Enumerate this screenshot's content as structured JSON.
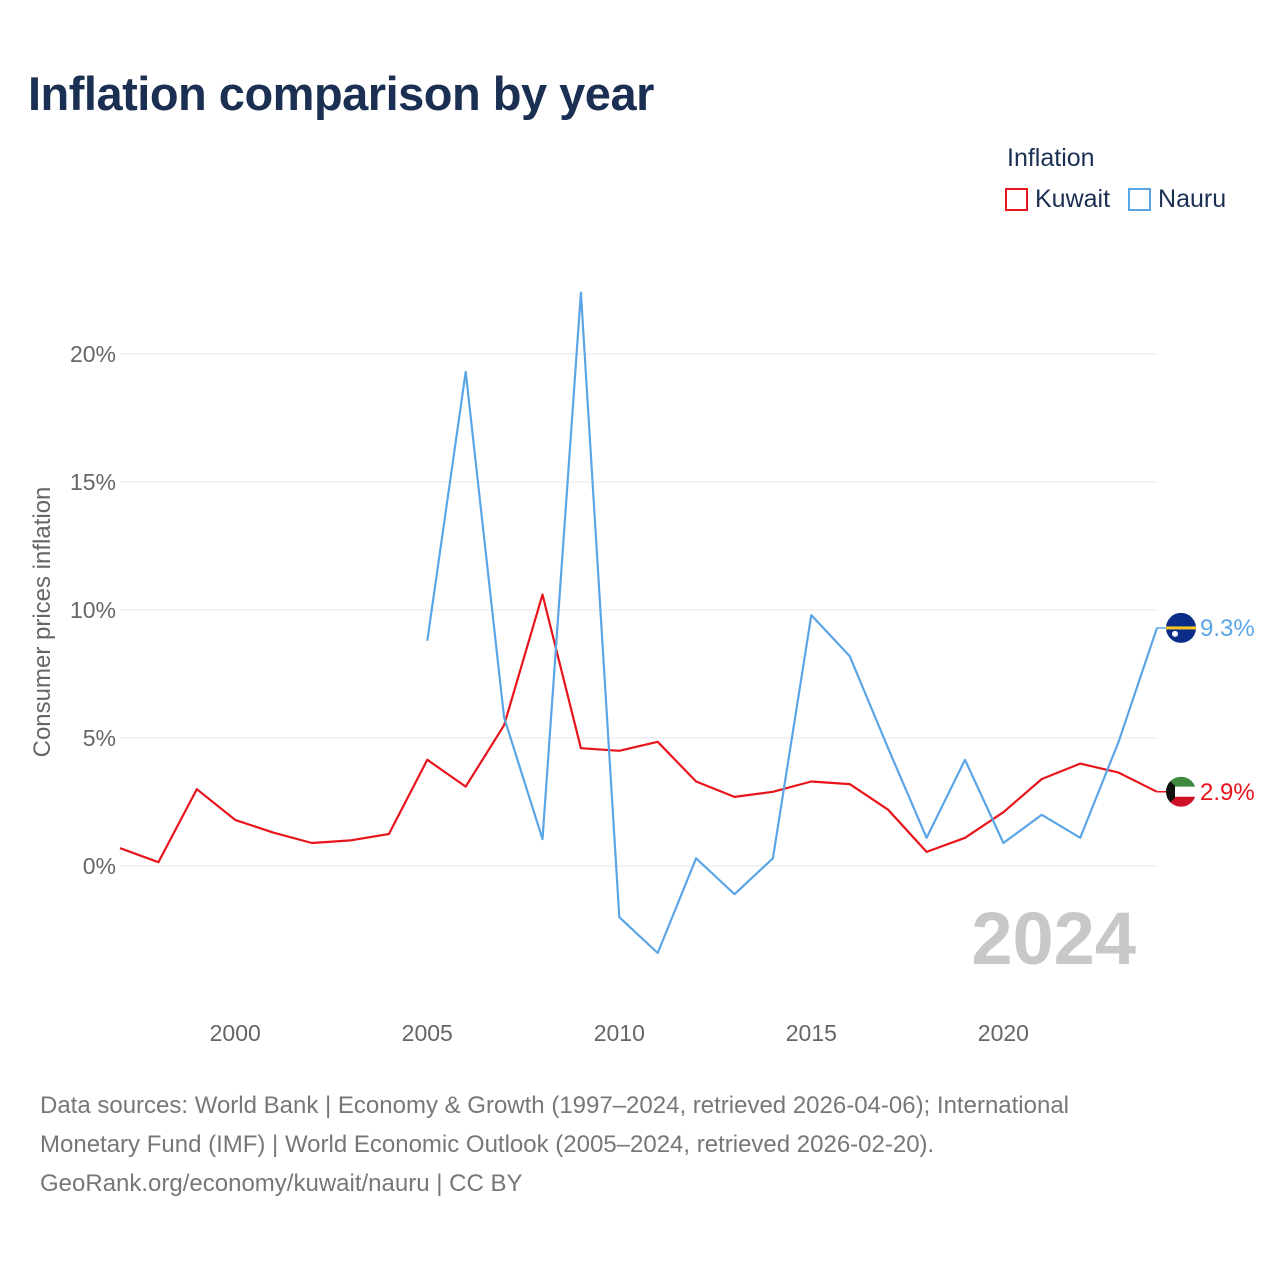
{
  "title": "Inflation comparison by year",
  "legend": {
    "title": "Inflation",
    "items": [
      {
        "name": "Kuwait",
        "color": "#e8141c"
      },
      {
        "name": "Nauru",
        "color": "#5aa5e6"
      }
    ]
  },
  "chart_data": {
    "type": "line",
    "title": "Inflation comparison by year",
    "xlabel": "",
    "ylabel": "Consumer prices inflation",
    "xlim": [
      1997,
      2024
    ],
    "ylim": [
      -5,
      23
    ],
    "x_ticks": [
      2000,
      2005,
      2010,
      2015,
      2020
    ],
    "x_tick_labels": [
      "2000",
      "2005",
      "2010",
      "2015",
      "2020"
    ],
    "y_ticks": [
      0,
      5,
      10,
      15,
      20
    ],
    "y_tick_labels": [
      "0%",
      "5%",
      "10%",
      "15%",
      "20%"
    ],
    "grid": true,
    "year_watermark": "2024",
    "series": [
      {
        "name": "Kuwait",
        "color": "#e8141c",
        "x": [
          1997,
          1998,
          1999,
          2000,
          2001,
          2002,
          2003,
          2004,
          2005,
          2006,
          2007,
          2008,
          2009,
          2010,
          2011,
          2012,
          2013,
          2014,
          2015,
          2016,
          2017,
          2018,
          2019,
          2020,
          2021,
          2022,
          2023,
          2024
        ],
        "values": [
          0.7,
          0.15,
          3.0,
          1.8,
          1.3,
          0.9,
          1.0,
          1.25,
          4.15,
          3.1,
          5.5,
          10.6,
          4.6,
          4.5,
          4.85,
          3.3,
          2.7,
          2.9,
          3.3,
          3.2,
          2.2,
          0.55,
          1.1,
          2.1,
          3.4,
          4.0,
          3.65,
          2.9
        ],
        "end_label": "2.9%"
      },
      {
        "name": "Nauru",
        "color": "#5aa5e6",
        "x": [
          2005,
          2006,
          2007,
          2008,
          2009,
          2010,
          2011,
          2012,
          2013,
          2014,
          2015,
          2016,
          2017,
          2018,
          2019,
          2020,
          2021,
          2022,
          2023,
          2024
        ],
        "values": [
          8.8,
          19.3,
          5.8,
          1.05,
          22.4,
          -2.0,
          -3.4,
          0.3,
          -1.1,
          0.3,
          9.8,
          8.2,
          4.6,
          1.1,
          4.15,
          0.9,
          2.0,
          1.1,
          4.85,
          9.3
        ],
        "end_label": "9.3%"
      }
    ]
  },
  "footer": {
    "line1": "Data sources: World Bank | Economy & Growth (1997–2024, retrieved 2026-04-06); International",
    "line2": "Monetary Fund (IMF) | World Economic Outlook (2005–2024, retrieved 2026-02-20).",
    "line3": "GeoRank.org/economy/kuwait/nauru | CC BY"
  }
}
